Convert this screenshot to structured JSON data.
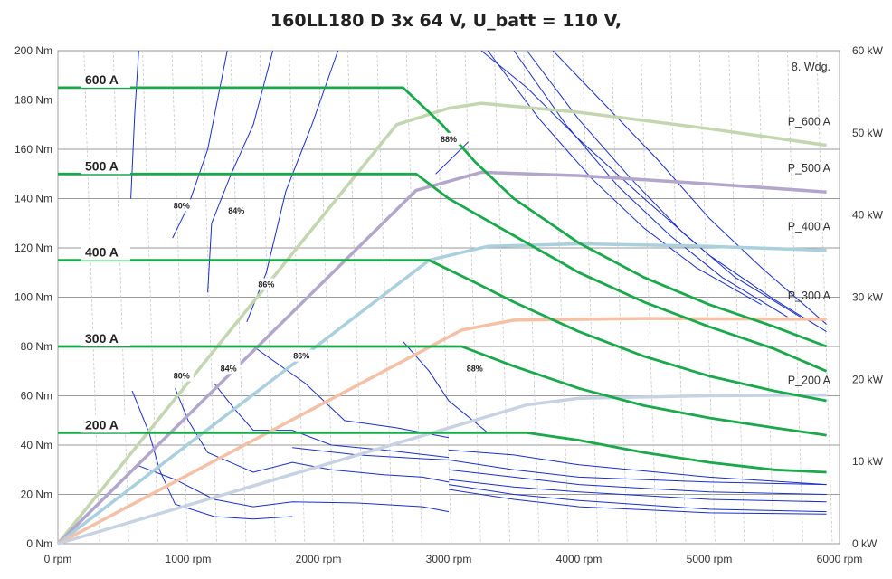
{
  "chart_data": {
    "type": "line",
    "title": "160LL180 D 3x 64 V, U_batt = 110 V,",
    "annotation": "8. Wdg.",
    "x_axis": {
      "ticks": [
        0,
        1000,
        2000,
        3000,
        4000,
        5000,
        6000
      ],
      "tick_labels": [
        "0 rpm",
        "1000 rpm",
        "2000 rpm",
        "3000 rpm",
        "4000 rpm",
        "5000 rpm",
        "6000 rpm"
      ],
      "range": [
        0,
        6000
      ]
    },
    "y_left": {
      "ticks": [
        0,
        20,
        40,
        60,
        80,
        100,
        120,
        140,
        160,
        180,
        200
      ],
      "tick_labels": [
        "0 Nm",
        "20 Nm",
        "40 Nm",
        "60 Nm",
        "80 Nm",
        "100 Nm",
        "120 Nm",
        "140 Nm",
        "160 Nm",
        "180 Nm",
        "200 Nm"
      ],
      "range": [
        0,
        200
      ]
    },
    "y_right": {
      "ticks": [
        0,
        10,
        20,
        30,
        40,
        50,
        60
      ],
      "tick_labels": [
        "0 kW",
        "10 kW",
        "20 kW",
        "30 kW",
        "40 kW",
        "50 kW",
        "60 kW"
      ],
      "range": [
        0,
        60
      ]
    },
    "grid": true,
    "torque_series": [
      {
        "name": "600 A",
        "color": "#19a84a",
        "points": [
          [
            0,
            185
          ],
          [
            2650,
            185
          ],
          [
            2950,
            170
          ],
          [
            3200,
            155
          ],
          [
            3500,
            140
          ],
          [
            4000,
            122
          ],
          [
            4500,
            108
          ],
          [
            5000,
            97
          ],
          [
            5500,
            88
          ],
          [
            5900,
            80
          ]
        ]
      },
      {
        "name": "500 A",
        "color": "#19a84a",
        "points": [
          [
            0,
            150
          ],
          [
            2750,
            150
          ],
          [
            3000,
            140
          ],
          [
            3500,
            125
          ],
          [
            4000,
            110
          ],
          [
            4500,
            98
          ],
          [
            5000,
            88
          ],
          [
            5500,
            79
          ],
          [
            5900,
            70
          ]
        ]
      },
      {
        "name": "400 A",
        "color": "#19a84a",
        "points": [
          [
            0,
            115
          ],
          [
            2850,
            115
          ],
          [
            3200,
            106
          ],
          [
            3500,
            98
          ],
          [
            4000,
            86
          ],
          [
            4500,
            76
          ],
          [
            5000,
            68
          ],
          [
            5500,
            62
          ],
          [
            5900,
            58
          ]
        ]
      },
      {
        "name": "300 A",
        "color": "#19a84a",
        "points": [
          [
            0,
            80
          ],
          [
            3100,
            80
          ],
          [
            3500,
            72
          ],
          [
            4000,
            63
          ],
          [
            4500,
            56
          ],
          [
            5000,
            51
          ],
          [
            5500,
            47
          ],
          [
            5900,
            44
          ]
        ]
      },
      {
        "name": "200 A",
        "color": "#19a84a",
        "points": [
          [
            0,
            45
          ],
          [
            3600,
            45
          ],
          [
            4000,
            42
          ],
          [
            4500,
            37
          ],
          [
            5000,
            33
          ],
          [
            5500,
            30
          ],
          [
            5900,
            29
          ]
        ]
      }
    ],
    "power_series": [
      {
        "name": "P_600 A",
        "color": "#c4d6b0",
        "points": [
          [
            0,
            0
          ],
          [
            2600,
            51
          ],
          [
            3000,
            53
          ],
          [
            3250,
            53.6
          ],
          [
            4000,
            52.5
          ],
          [
            5000,
            50.5
          ],
          [
            5900,
            48.5
          ]
        ]
      },
      {
        "name": "P_500 A",
        "color": "#b3a6cd",
        "points": [
          [
            0,
            0
          ],
          [
            2750,
            43
          ],
          [
            3250,
            45.2
          ],
          [
            4000,
            44.8
          ],
          [
            5000,
            43.8
          ],
          [
            5900,
            42.8
          ]
        ]
      },
      {
        "name": "P_400 A",
        "color": "#aacfdd",
        "points": [
          [
            0,
            0
          ],
          [
            2850,
            34.5
          ],
          [
            3300,
            36.2
          ],
          [
            4000,
            36.5
          ],
          [
            5000,
            36.2
          ],
          [
            5900,
            35.7
          ]
        ]
      },
      {
        "name": "P_300 A",
        "color": "#f5c1a6",
        "points": [
          [
            0,
            0
          ],
          [
            3100,
            26
          ],
          [
            3500,
            27.2
          ],
          [
            4500,
            27.4
          ],
          [
            5900,
            27.3
          ]
        ]
      },
      {
        "name": "P_200 A",
        "color": "#c7d2e2",
        "points": [
          [
            0,
            0
          ],
          [
            3600,
            16.9
          ],
          [
            4000,
            17.7
          ],
          [
            5000,
            18
          ],
          [
            5900,
            18.1
          ]
        ]
      }
    ],
    "efficiency_labels": [
      {
        "text": "80%",
        "x": 950,
        "y": 136
      },
      {
        "text": "84%",
        "x": 1370,
        "y": 134
      },
      {
        "text": "86%",
        "x": 1600,
        "y": 104
      },
      {
        "text": "88%",
        "x": 3000,
        "y": 163
      },
      {
        "text": "80%",
        "x": 950,
        "y": 67
      },
      {
        "text": "84%",
        "x": 1310,
        "y": 70
      },
      {
        "text": "86%",
        "x": 1870,
        "y": 75
      },
      {
        "text": "88%",
        "x": 3200,
        "y": 70
      }
    ],
    "efficiency_contours": [
      [
        [
          1300,
          200
        ],
        [
          1150,
          160
        ],
        [
          1000,
          137
        ],
        [
          880,
          124
        ]
      ],
      [
        [
          1650,
          200
        ],
        [
          1500,
          170
        ],
        [
          1330,
          150
        ],
        [
          1180,
          130
        ],
        [
          1150,
          102
        ]
      ],
      [
        [
          2150,
          200
        ],
        [
          1950,
          170
        ],
        [
          1750,
          143
        ],
        [
          1600,
          110
        ],
        [
          1450,
          90
        ]
      ],
      [
        [
          3150,
          163
        ],
        [
          2900,
          150
        ]
      ],
      [
        [
          620,
          200
        ],
        [
          590,
          175
        ],
        [
          560,
          140
        ]
      ],
      [
        [
          570,
          62
        ],
        [
          700,
          45
        ],
        [
          780,
          30
        ],
        [
          900,
          16
        ],
        [
          1200,
          11
        ],
        [
          1500,
          10
        ],
        [
          1800,
          11
        ]
      ],
      [
        [
          900,
          63
        ],
        [
          1000,
          50
        ],
        [
          1150,
          37
        ],
        [
          1500,
          29
        ],
        [
          1800,
          33
        ],
        [
          2100,
          30
        ],
        [
          2500,
          28
        ],
        [
          2800,
          27
        ],
        [
          3000,
          25
        ]
      ],
      [
        [
          1200,
          65
        ],
        [
          1350,
          55
        ],
        [
          1500,
          46
        ],
        [
          1800,
          46
        ],
        [
          2100,
          40
        ],
        [
          2500,
          38
        ],
        [
          3000,
          35
        ]
      ],
      [
        [
          1500,
          80
        ],
        [
          1900,
          65
        ],
        [
          2200,
          50
        ],
        [
          2600,
          47
        ],
        [
          3000,
          43
        ]
      ],
      [
        [
          2650,
          82
        ],
        [
          2850,
          70
        ],
        [
          3000,
          58
        ],
        [
          3300,
          45
        ]
      ],
      [
        [
          600,
          32
        ],
        [
          900,
          26
        ],
        [
          1200,
          18
        ],
        [
          1500,
          15
        ],
        [
          1800,
          17
        ],
        [
          2300,
          16.5
        ],
        [
          2800,
          15
        ],
        [
          3000,
          13
        ]
      ],
      [
        [
          1800,
          39
        ],
        [
          2300,
          36
        ],
        [
          2800,
          34.5
        ],
        [
          3000,
          34
        ],
        [
          3500,
          30
        ],
        [
          4000,
          27
        ],
        [
          5000,
          25
        ],
        [
          5900,
          24
        ]
      ],
      [
        [
          3000,
          38
        ],
        [
          3500,
          36
        ],
        [
          4000,
          32
        ],
        [
          5000,
          27
        ],
        [
          5900,
          24
        ]
      ],
      [
        [
          3000,
          30
        ],
        [
          3500,
          27
        ],
        [
          4000,
          24
        ],
        [
          5000,
          21
        ],
        [
          5900,
          20
        ]
      ],
      [
        [
          3000,
          26
        ],
        [
          3500,
          23
        ],
        [
          4000,
          21
        ],
        [
          5000,
          18
        ],
        [
          5900,
          17
        ]
      ],
      [
        [
          3000,
          24
        ],
        [
          3500,
          20
        ],
        [
          4000,
          17.5
        ],
        [
          5000,
          14
        ],
        [
          5900,
          13
        ]
      ],
      [
        [
          3000,
          22
        ],
        [
          3500,
          18
        ],
        [
          4000,
          15
        ],
        [
          5000,
          12.5
        ],
        [
          5900,
          12
        ]
      ],
      [
        [
          3250,
          200
        ],
        [
          3600,
          185
        ],
        [
          4000,
          164
        ],
        [
          4500,
          140
        ],
        [
          5000,
          117
        ],
        [
          5500,
          99
        ],
        [
          5900,
          86
        ]
      ],
      [
        [
          3800,
          200
        ],
        [
          4200,
          178
        ],
        [
          4600,
          156
        ],
        [
          5000,
          132
        ],
        [
          5400,
          112
        ],
        [
          5900,
          89
        ]
      ],
      [
        [
          3600,
          200
        ],
        [
          4000,
          172
        ],
        [
          4400,
          148
        ],
        [
          4800,
          126
        ],
        [
          5200,
          108
        ],
        [
          5700,
          92
        ]
      ],
      [
        [
          3500,
          200
        ],
        [
          3900,
          170
        ],
        [
          4300,
          145
        ],
        [
          4700,
          125
        ],
        [
          5100,
          108
        ],
        [
          5600,
          92
        ]
      ],
      [
        [
          3300,
          200
        ],
        [
          3700,
          172
        ],
        [
          4100,
          148
        ],
        [
          4500,
          128
        ],
        [
          4900,
          112
        ],
        [
          5400,
          97
        ]
      ]
    ]
  }
}
